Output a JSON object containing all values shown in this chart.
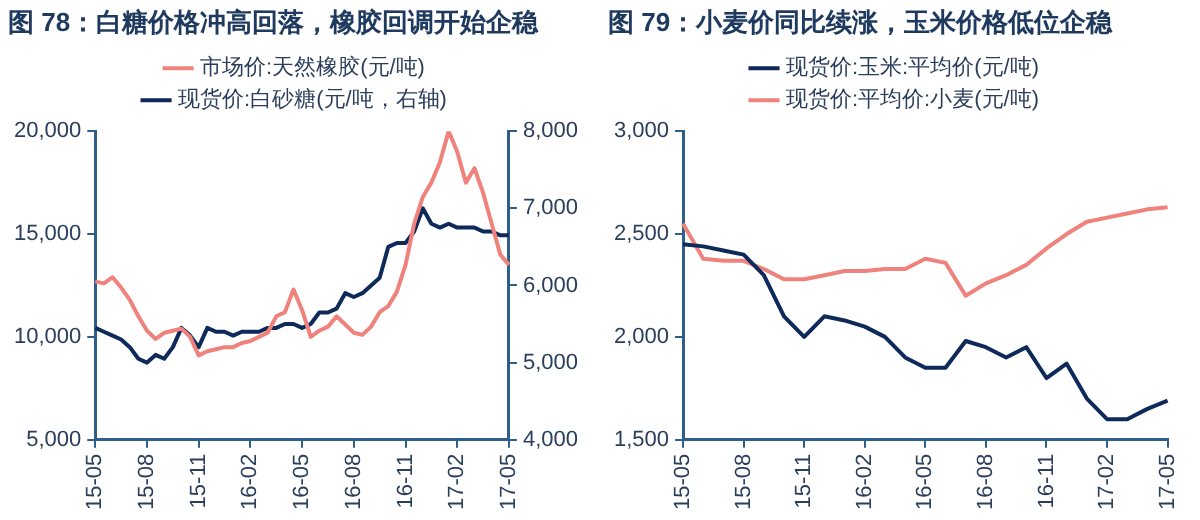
{
  "chart_data": [
    {
      "type": "line",
      "title": "图 78：白糖价格冲高回落，橡胶回调开始企稳",
      "legend": "top",
      "grid": false,
      "categories": [
        "15-05",
        null,
        null,
        null,
        null,
        null,
        "15-08",
        null,
        null,
        null,
        null,
        null,
        "15-11",
        null,
        null,
        null,
        null,
        null,
        "16-02",
        null,
        null,
        null,
        null,
        null,
        "16-05",
        null,
        null,
        null,
        null,
        null,
        "16-08",
        null,
        null,
        null,
        null,
        null,
        "16-11",
        null,
        null,
        null,
        null,
        null,
        "17-02",
        null,
        null,
        null,
        null,
        null,
        "17-05"
      ],
      "ylim": [
        5000,
        20000
      ],
      "yticks": [
        {
          "value": 5000,
          "label": "5,000"
        },
        {
          "value": 10000,
          "label": "10,000"
        },
        {
          "value": 15000,
          "label": "15,000"
        },
        {
          "value": 20000,
          "label": "20,000"
        }
      ],
      "y2lim": [
        4000,
        8000
      ],
      "y2ticks": [
        {
          "value": 4000,
          "label": "4,000"
        },
        {
          "value": 5000,
          "label": "5,000"
        },
        {
          "value": 6000,
          "label": "6,000"
        },
        {
          "value": 7000,
          "label": "7,000"
        },
        {
          "value": 8000,
          "label": "8,000"
        }
      ],
      "series": [
        {
          "name": "市场价:天然橡胶(元/吨)",
          "color": "#f0827d",
          "values": [
            12700,
            12600,
            12900,
            12400,
            11800,
            11000,
            10300,
            9900,
            10200,
            10300,
            10400,
            10000,
            9100,
            9300,
            9400,
            9500,
            9500,
            9700,
            9800,
            10000,
            10200,
            11000,
            11200,
            12300,
            11300,
            10000,
            10300,
            10500,
            11000,
            10600,
            10200,
            10100,
            10500,
            11200,
            11500,
            12200,
            13500,
            15500,
            16800,
            17500,
            18500,
            20000,
            19000,
            17500,
            18200,
            17000,
            15500,
            14000,
            13500
          ]
        },
        {
          "name": "现货价:白砂糖(元/吨，右轴)",
          "color": "#0d2a5a",
          "axis": "y2",
          "values": [
            5450,
            5400,
            5350,
            5300,
            5200,
            5050,
            5000,
            5100,
            5050,
            5200,
            5450,
            5350,
            5200,
            5450,
            5400,
            5400,
            5350,
            5400,
            5400,
            5400,
            5450,
            5450,
            5500,
            5500,
            5450,
            5500,
            5650,
            5650,
            5700,
            5900,
            5850,
            5900,
            6000,
            6100,
            6500,
            6550,
            6550,
            6700,
            7000,
            6800,
            6750,
            6800,
            6750,
            6750,
            6750,
            6700,
            6700,
            6650,
            6650
          ]
        }
      ]
    },
    {
      "type": "line",
      "title": "图 79：小麦价同比续涨，玉米价格低位企稳",
      "legend": "top",
      "grid": false,
      "categories": [
        "15-05",
        null,
        null,
        "15-08",
        null,
        null,
        "15-11",
        null,
        null,
        "16-02",
        null,
        null,
        "16-05",
        null,
        null,
        "16-08",
        null,
        null,
        "16-11",
        null,
        null,
        "17-02",
        null,
        null,
        "17-05"
      ],
      "ylim": [
        1500,
        3000
      ],
      "yticks": [
        {
          "value": 1500,
          "label": "1,500"
        },
        {
          "value": 2000,
          "label": "2,000"
        },
        {
          "value": 2500,
          "label": "2,500"
        },
        {
          "value": 3000,
          "label": "3,000"
        }
      ],
      "series": [
        {
          "name": "现货价:玉米:平均价(元/吨)",
          "color": "#0d2a5a",
          "values": [
            2450,
            2440,
            2420,
            2400,
            2300,
            2100,
            2000,
            2100,
            2080,
            2050,
            2000,
            1900,
            1850,
            1850,
            1980,
            1950,
            1900,
            1950,
            1800,
            1870,
            1700,
            1600,
            1600,
            1650,
            1690
          ]
        },
        {
          "name": "现货价:平均价:小麦(元/吨)",
          "color": "#f0827d",
          "values": [
            2550,
            2380,
            2370,
            2370,
            2330,
            2280,
            2280,
            2300,
            2320,
            2320,
            2330,
            2330,
            2380,
            2360,
            2200,
            2260,
            2300,
            2350,
            2430,
            2500,
            2560,
            2580,
            2600,
            2620,
            2630
          ]
        }
      ]
    }
  ]
}
